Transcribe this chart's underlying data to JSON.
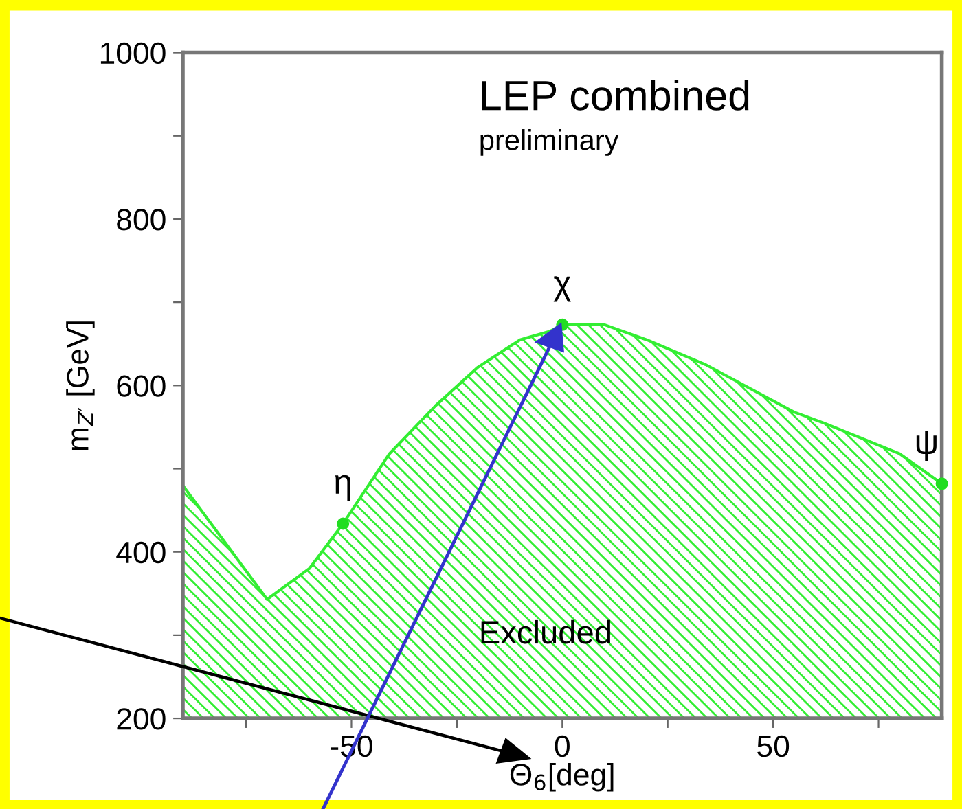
{
  "chart_data": {
    "type": "area",
    "xlabel": "Θ$_{6}$[deg]",
    "ylabel": "m$_{Z′}$ [GeV]",
    "annotations": [
      "LEP combined",
      "preliminary",
      "Excluded",
      {
        "text": "η",
        "x": -52,
        "y": 434
      },
      {
        "text": "χ",
        "x": 0,
        "y": 673
      },
      {
        "text": "ψ",
        "x": 90,
        "y": 482
      }
    ],
    "series": [
      {
        "color": "#33ee33",
        "x": [
          -90,
          -70,
          -60,
          -52,
          -41,
          -30,
          -20,
          -10,
          -3,
          0,
          10,
          20,
          34,
          55,
          62,
          80,
          90
        ],
        "values": [
          480,
          343,
          380,
          434,
          518,
          576,
          622,
          655,
          665,
          673,
          673,
          655,
          625,
          568,
          555,
          518,
          482
        ]
      },
      {
        "type": "scatter",
        "marker": "circle",
        "color": "#22dd22",
        "x": [
          -52,
          0,
          90
        ],
        "values": [
          434,
          673,
          482
        ]
      }
    ],
    "xlim": [
      -90,
      90
    ],
    "ylim": [
      200,
      1000
    ],
    "xticks": [
      -50,
      0,
      50,
      {
        "value": -75,
        "label": null
      },
      {
        "value": -25,
        "label": null
      },
      {
        "value": 25,
        "label": null
      },
      {
        "value": 75,
        "label": null
      }
    ],
    "yticks": [
      200,
      400,
      600,
      800,
      1000,
      {
        "value": 300,
        "label": null
      },
      {
        "value": 500,
        "label": null
      },
      {
        "value": 700,
        "label": null
      },
      {
        "value": 900,
        "label": null
      }
    ],
    "grid": false,
    "legend": false
  }
}
